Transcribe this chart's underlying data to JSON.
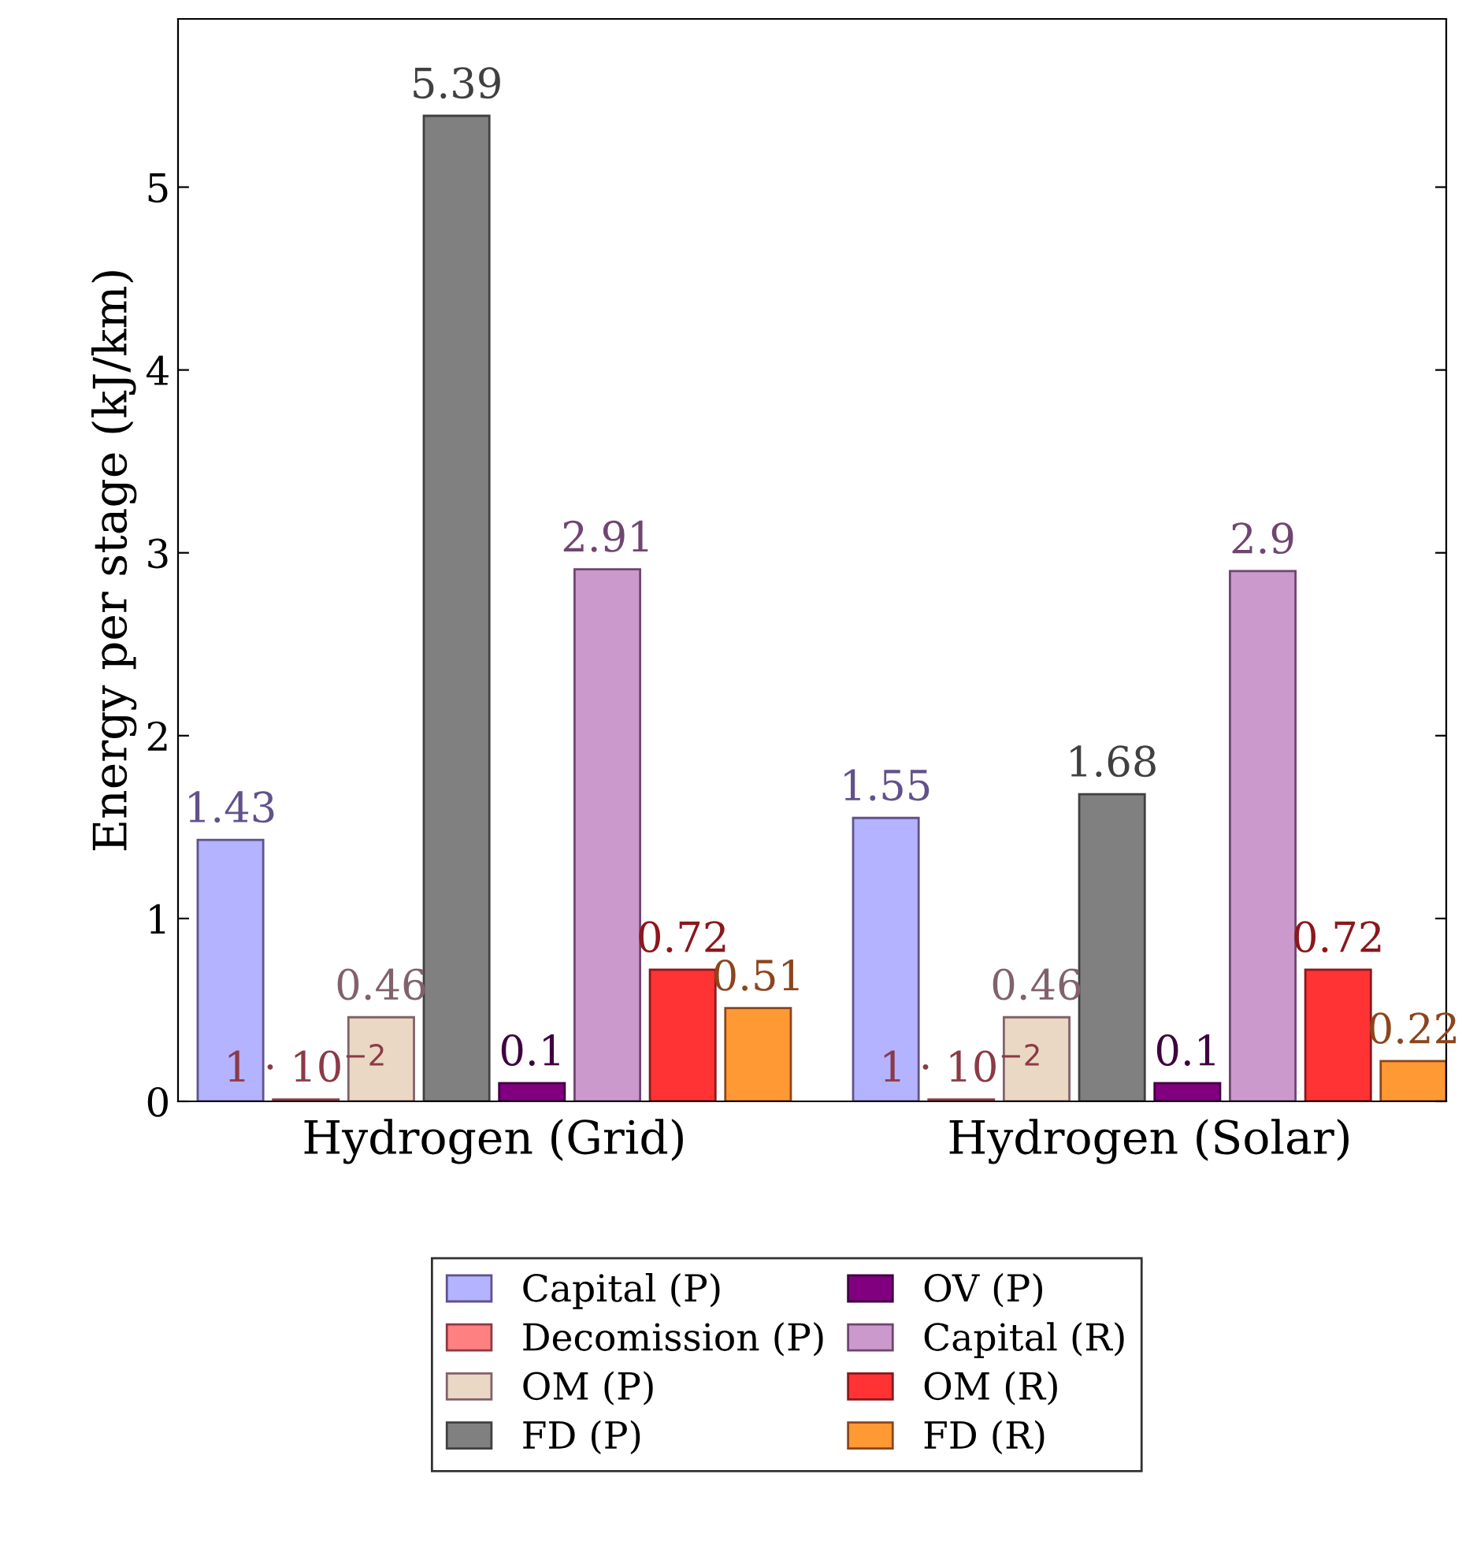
{
  "chart_data": {
    "type": "bar",
    "ylabel": "Energy per stage (kJ/km)",
    "categories": [
      "Hydrogen (Grid)",
      "Hydrogen (Solar)"
    ],
    "series": [
      {
        "name": "Capital (P)",
        "color": "#b3b3ff",
        "values": [
          1.43,
          1.55
        ]
      },
      {
        "name": "Decomission (P)",
        "color": "#ff8080",
        "values": [
          0.01,
          0.01
        ],
        "value_labels": [
          "1 · 10$^{−2}$",
          "1 · 10$^{−2}$"
        ]
      },
      {
        "name": "OM (P)",
        "color": "#ead8c4",
        "values": [
          0.46,
          0.46
        ]
      },
      {
        "name": "FD (P)",
        "color": "#808080",
        "values": [
          5.39,
          1.68
        ]
      },
      {
        "name": "OV (P)",
        "color": "#800080",
        "values": [
          0.1,
          0.1
        ]
      },
      {
        "name": "Capital (R)",
        "color": "#cc99cc",
        "values": [
          2.91,
          2.9
        ]
      },
      {
        "name": "OM (R)",
        "color": "#ff3333",
        "values": [
          0.72,
          0.72
        ]
      },
      {
        "name": "FD (R)",
        "color": "#ff9933",
        "values": [
          0.51,
          0.22
        ]
      }
    ],
    "ylim": [
      0,
      5.92
    ],
    "yticks": [
      0,
      1,
      2,
      3,
      4,
      5
    ],
    "data_labels": true,
    "legend": "bottom",
    "grid": false
  }
}
